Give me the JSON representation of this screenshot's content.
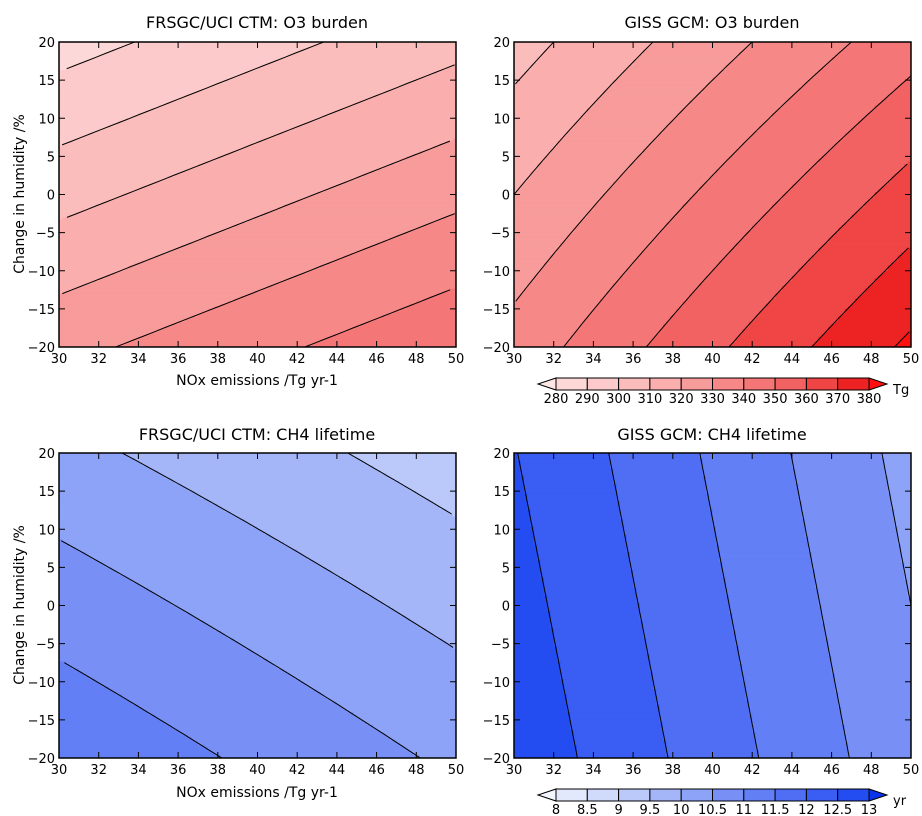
{
  "chart_data": [
    {
      "type": "heatmap",
      "title": "FRSGC/UCI CTM: O3 burden",
      "xlabel": "NOx emissions /Tg yr-1",
      "ylabel": "Change in humidity /%",
      "xlim": [
        30,
        50
      ],
      "ylim": [
        -20,
        20
      ],
      "x_ticks": [
        "30",
        "32",
        "34",
        "36",
        "38",
        "40",
        "42",
        "44",
        "46",
        "48",
        "50"
      ],
      "y_ticks": [
        "20",
        "15",
        "10",
        "5",
        "0",
        "−5",
        "−10",
        "−15",
        "−20"
      ],
      "field": {
        "x": [
          30,
          50
        ],
        "y": [
          20,
          -20
        ],
        "z": [
          [
            286,
            307
          ],
          [
            327,
            348
          ]
        ]
      },
      "levels": [
        280,
        290,
        300,
        310,
        320,
        330,
        340,
        350,
        360,
        370,
        380
      ],
      "colorscale": "red"
    },
    {
      "type": "heatmap",
      "title": "GISS GCM: O3 burden",
      "xlabel": "",
      "ylabel": "",
      "xlim": [
        30,
        50
      ],
      "ylim": [
        -20,
        20
      ],
      "x_ticks": [
        "30",
        "32",
        "34",
        "36",
        "38",
        "40",
        "42",
        "44",
        "46",
        "48",
        "50"
      ],
      "y_ticks": [
        "20",
        "15",
        "10",
        "5",
        "0",
        "−5",
        "−10",
        "−15",
        "−20"
      ],
      "field": {
        "x": [
          30,
          50
        ],
        "y": [
          20,
          -20
        ],
        "z": [
          [
            306,
            346
          ],
          [
            334,
            382
          ]
        ]
      },
      "levels": [
        280,
        290,
        300,
        310,
        320,
        330,
        340,
        350,
        360,
        370,
        380
      ],
      "colorscale": "red",
      "colorbar": {
        "labels": [
          "280",
          "290",
          "300",
          "310",
          "320",
          "330",
          "340",
          "350",
          "360",
          "370",
          "380"
        ],
        "units": "Tg"
      }
    },
    {
      "type": "heatmap",
      "title": "FRSGC/UCI CTM: CH4 lifetime",
      "xlabel": "NOx emissions /Tg yr-1",
      "ylabel": "Change in humidity /%",
      "xlim": [
        30,
        50
      ],
      "ylim": [
        -20,
        20
      ],
      "x_ticks": [
        "30",
        "32",
        "34",
        "36",
        "38",
        "40",
        "42",
        "44",
        "46",
        "48",
        "50"
      ],
      "y_ticks": [
        "20",
        "15",
        "10",
        "5",
        "0",
        "−5",
        "−10",
        "−15",
        "−20"
      ],
      "field": {
        "x": [
          30,
          50
        ],
        "y": [
          20,
          -20
        ],
        "z": [
          [
            10.14,
            9.26
          ],
          [
            11.41,
            10.41
          ]
        ]
      },
      "levels": [
        8,
        8.5,
        9,
        9.5,
        10,
        10.5,
        11,
        11.5,
        12,
        12.5,
        13
      ],
      "colorscale": "blue"
    },
    {
      "type": "heatmap",
      "title": "GISS GCM: CH4 lifetime",
      "xlabel": "",
      "ylabel": "",
      "xlim": [
        30,
        50
      ],
      "ylim": [
        -20,
        20
      ],
      "x_ticks": [
        "30",
        "32",
        "34",
        "36",
        "38",
        "40",
        "42",
        "44",
        "46",
        "48",
        "50"
      ],
      "y_ticks": [
        "20",
        "15",
        "10",
        "5",
        "0",
        "−5",
        "−10",
        "−15",
        "−20"
      ],
      "field": {
        "x": [
          30,
          50
        ],
        "y": [
          20,
          -20
        ],
        "z": [
          [
            12.52,
            10.34
          ],
          [
            12.85,
            10.66
          ]
        ]
      },
      "levels": [
        8,
        8.5,
        9,
        9.5,
        10,
        10.5,
        11,
        11.5,
        12,
        12.5,
        13
      ],
      "colorscale": "blue",
      "colorbar": {
        "labels": [
          "8",
          "8.5",
          "9",
          "9.5",
          "10",
          "10.5",
          "11",
          "11.5",
          "12",
          "12.5",
          "13"
        ],
        "units": "yr"
      }
    }
  ],
  "colors": {
    "red_scale": [
      "#fde6e6",
      "#fdd8d8",
      "#fccaca",
      "#fbbcbc",
      "#faaeae",
      "#f89b9b",
      "#f78888",
      "#f57676",
      "#f36262",
      "#f04545",
      "#ed2323",
      "#ff0f0f"
    ],
    "blue_scale": [
      "#f4f6ff",
      "#e3e9fd",
      "#d0dafb",
      "#bac8fa",
      "#a4b6f8",
      "#8da3f7",
      "#7890f6",
      "#637ff5",
      "#4f6ef4",
      "#3a5df3",
      "#244df1",
      "#0a33ee"
    ]
  }
}
